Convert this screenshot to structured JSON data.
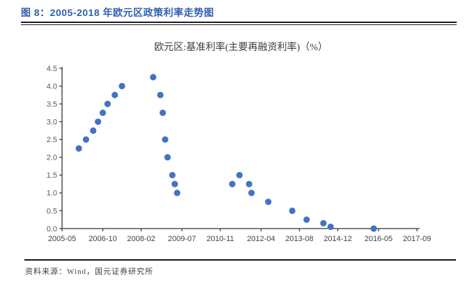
{
  "figure": {
    "title": "图 8：2005-2018 年欧元区政策利率走势图",
    "title_color": "#3060AD",
    "source": "资料来源：Wind，国元证券研究所"
  },
  "chart_data": {
    "type": "scatter",
    "title": "欧元区:基准利率(主要再融资利率)（%）",
    "point_color": "#4472C4",
    "ylim": [
      0.0,
      4.5
    ],
    "y_tick_step": 0.5,
    "y_tick_labels": [
      "0.0",
      "0.5",
      "1.0",
      "1.5",
      "2.0",
      "2.5",
      "3.0",
      "3.5",
      "4.0",
      "4.5"
    ],
    "x_tick_labels": [
      "2005-05",
      "2006-10",
      "2008-02",
      "2009-07",
      "2010-11",
      "2012-04",
      "2013-08",
      "2014-12",
      "2016-05",
      "2017-09"
    ],
    "x_range_months": [
      "2005-05",
      "2017-09"
    ],
    "grid": false,
    "legend": false,
    "points": [
      {
        "date": "2005-12",
        "value": 2.25
      },
      {
        "date": "2006-03",
        "value": 2.5
      },
      {
        "date": "2006-06",
        "value": 2.75
      },
      {
        "date": "2006-08",
        "value": 3.0
      },
      {
        "date": "2006-10",
        "value": 3.25
      },
      {
        "date": "2006-12",
        "value": 3.5
      },
      {
        "date": "2007-03",
        "value": 3.75
      },
      {
        "date": "2007-06",
        "value": 4.0
      },
      {
        "date": "2008-07",
        "value": 4.25
      },
      {
        "date": "2008-10",
        "value": 3.75
      },
      {
        "date": "2008-11",
        "value": 3.25
      },
      {
        "date": "2008-12",
        "value": 2.5
      },
      {
        "date": "2009-01",
        "value": 2.0
      },
      {
        "date": "2009-03",
        "value": 1.5
      },
      {
        "date": "2009-04",
        "value": 1.25
      },
      {
        "date": "2009-05",
        "value": 1.0
      },
      {
        "date": "2011-04",
        "value": 1.25
      },
      {
        "date": "2011-07",
        "value": 1.5
      },
      {
        "date": "2011-11",
        "value": 1.25
      },
      {
        "date": "2011-12",
        "value": 1.0
      },
      {
        "date": "2012-07",
        "value": 0.75
      },
      {
        "date": "2013-05",
        "value": 0.5
      },
      {
        "date": "2013-11",
        "value": 0.25
      },
      {
        "date": "2014-06",
        "value": 0.15
      },
      {
        "date": "2014-09",
        "value": 0.05
      },
      {
        "date": "2016-03",
        "value": 0.0
      }
    ]
  }
}
